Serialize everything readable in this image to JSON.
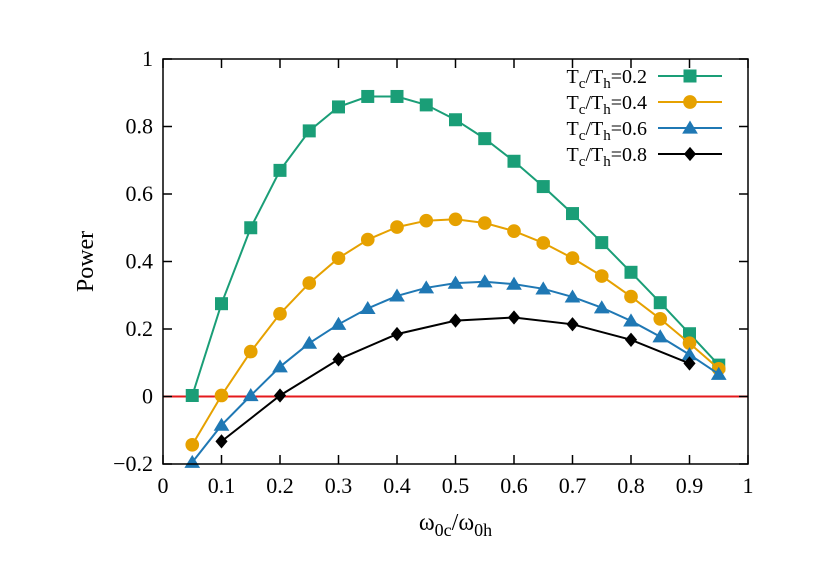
{
  "chart_data": {
    "type": "line",
    "title": "",
    "xlabel": {
      "main": "ω",
      "sub1": "0c",
      "mid": "/ω",
      "sub2": "0h"
    },
    "ylabel": "Power",
    "xlim": [
      0,
      1
    ],
    "ylim": [
      -0.2,
      1
    ],
    "x_ticks": [
      0,
      0.1,
      0.2,
      0.3,
      0.4,
      0.5,
      0.6,
      0.7,
      0.8,
      0.9,
      1
    ],
    "x_tick_labels": [
      "0",
      "0.1",
      "0.2",
      "0.3",
      "0.4",
      "0.5",
      "0.6",
      "0.7",
      "0.8",
      "0.9",
      "1"
    ],
    "y_ticks": [
      -0.2,
      0,
      0.2,
      0.4,
      0.6,
      0.8,
      1
    ],
    "y_tick_labels": [
      "−0.2",
      "0",
      "0.2",
      "0.4",
      "0.6",
      "0.8",
      "1"
    ],
    "grid": false,
    "legend_position": "top-right",
    "reference_line": {
      "y": 0,
      "color": "#e41a1c"
    },
    "series": [
      {
        "legend": {
          "a": "T",
          "a_sub": "c",
          "b": "/T",
          "b_sub": "h",
          "value": "=0.2"
        },
        "color": "#1a9e77",
        "marker": "square",
        "x": [
          0.05,
          0.1,
          0.15,
          0.2,
          0.25,
          0.3,
          0.35,
          0.4,
          0.45,
          0.5,
          0.55,
          0.6,
          0.65,
          0.7,
          0.75,
          0.8,
          0.85,
          0.9,
          0.95
        ],
        "y": [
          0.003,
          0.275,
          0.5,
          0.67,
          0.787,
          0.858,
          0.889,
          0.889,
          0.864,
          0.82,
          0.764,
          0.697,
          0.622,
          0.542,
          0.456,
          0.368,
          0.278,
          0.186,
          0.093
        ]
      },
      {
        "legend": {
          "a": "T",
          "a_sub": "c",
          "b": "/T",
          "b_sub": "h",
          "value": "=0.4"
        },
        "color": "#e6a100",
        "marker": "circle",
        "x": [
          0.05,
          0.1,
          0.15,
          0.2,
          0.25,
          0.3,
          0.35,
          0.4,
          0.45,
          0.5,
          0.55,
          0.6,
          0.65,
          0.7,
          0.75,
          0.8,
          0.85,
          0.9,
          0.95
        ],
        "y": [
          -0.143,
          0.003,
          0.133,
          0.245,
          0.336,
          0.41,
          0.465,
          0.502,
          0.521,
          0.525,
          0.514,
          0.49,
          0.455,
          0.41,
          0.357,
          0.296,
          0.23,
          0.158,
          0.082
        ]
      },
      {
        "legend": {
          "a": "T",
          "a_sub": "c",
          "b": "/T",
          "b_sub": "h",
          "value": "=0.6"
        },
        "color": "#1f78b4",
        "marker": "triangle",
        "x": [
          0.05,
          0.1,
          0.15,
          0.2,
          0.25,
          0.3,
          0.35,
          0.4,
          0.45,
          0.5,
          0.55,
          0.6,
          0.65,
          0.7,
          0.75,
          0.8,
          0.85,
          0.9,
          0.95
        ],
        "y": [
          -0.195,
          -0.085,
          0.003,
          0.088,
          0.158,
          0.214,
          0.261,
          0.298,
          0.322,
          0.336,
          0.34,
          0.333,
          0.319,
          0.295,
          0.263,
          0.224,
          0.177,
          0.124,
          0.066
        ]
      },
      {
        "legend": {
          "a": "T",
          "a_sub": "c",
          "b": "/T",
          "b_sub": "h",
          "value": "=0.8"
        },
        "color": "#000000",
        "marker": "diamond",
        "x": [
          0.1,
          0.2,
          0.3,
          0.4,
          0.5,
          0.6,
          0.7,
          0.8,
          0.9
        ],
        "y": [
          -0.133,
          0.003,
          0.11,
          0.185,
          0.225,
          0.234,
          0.214,
          0.168,
          0.098
        ]
      }
    ]
  }
}
